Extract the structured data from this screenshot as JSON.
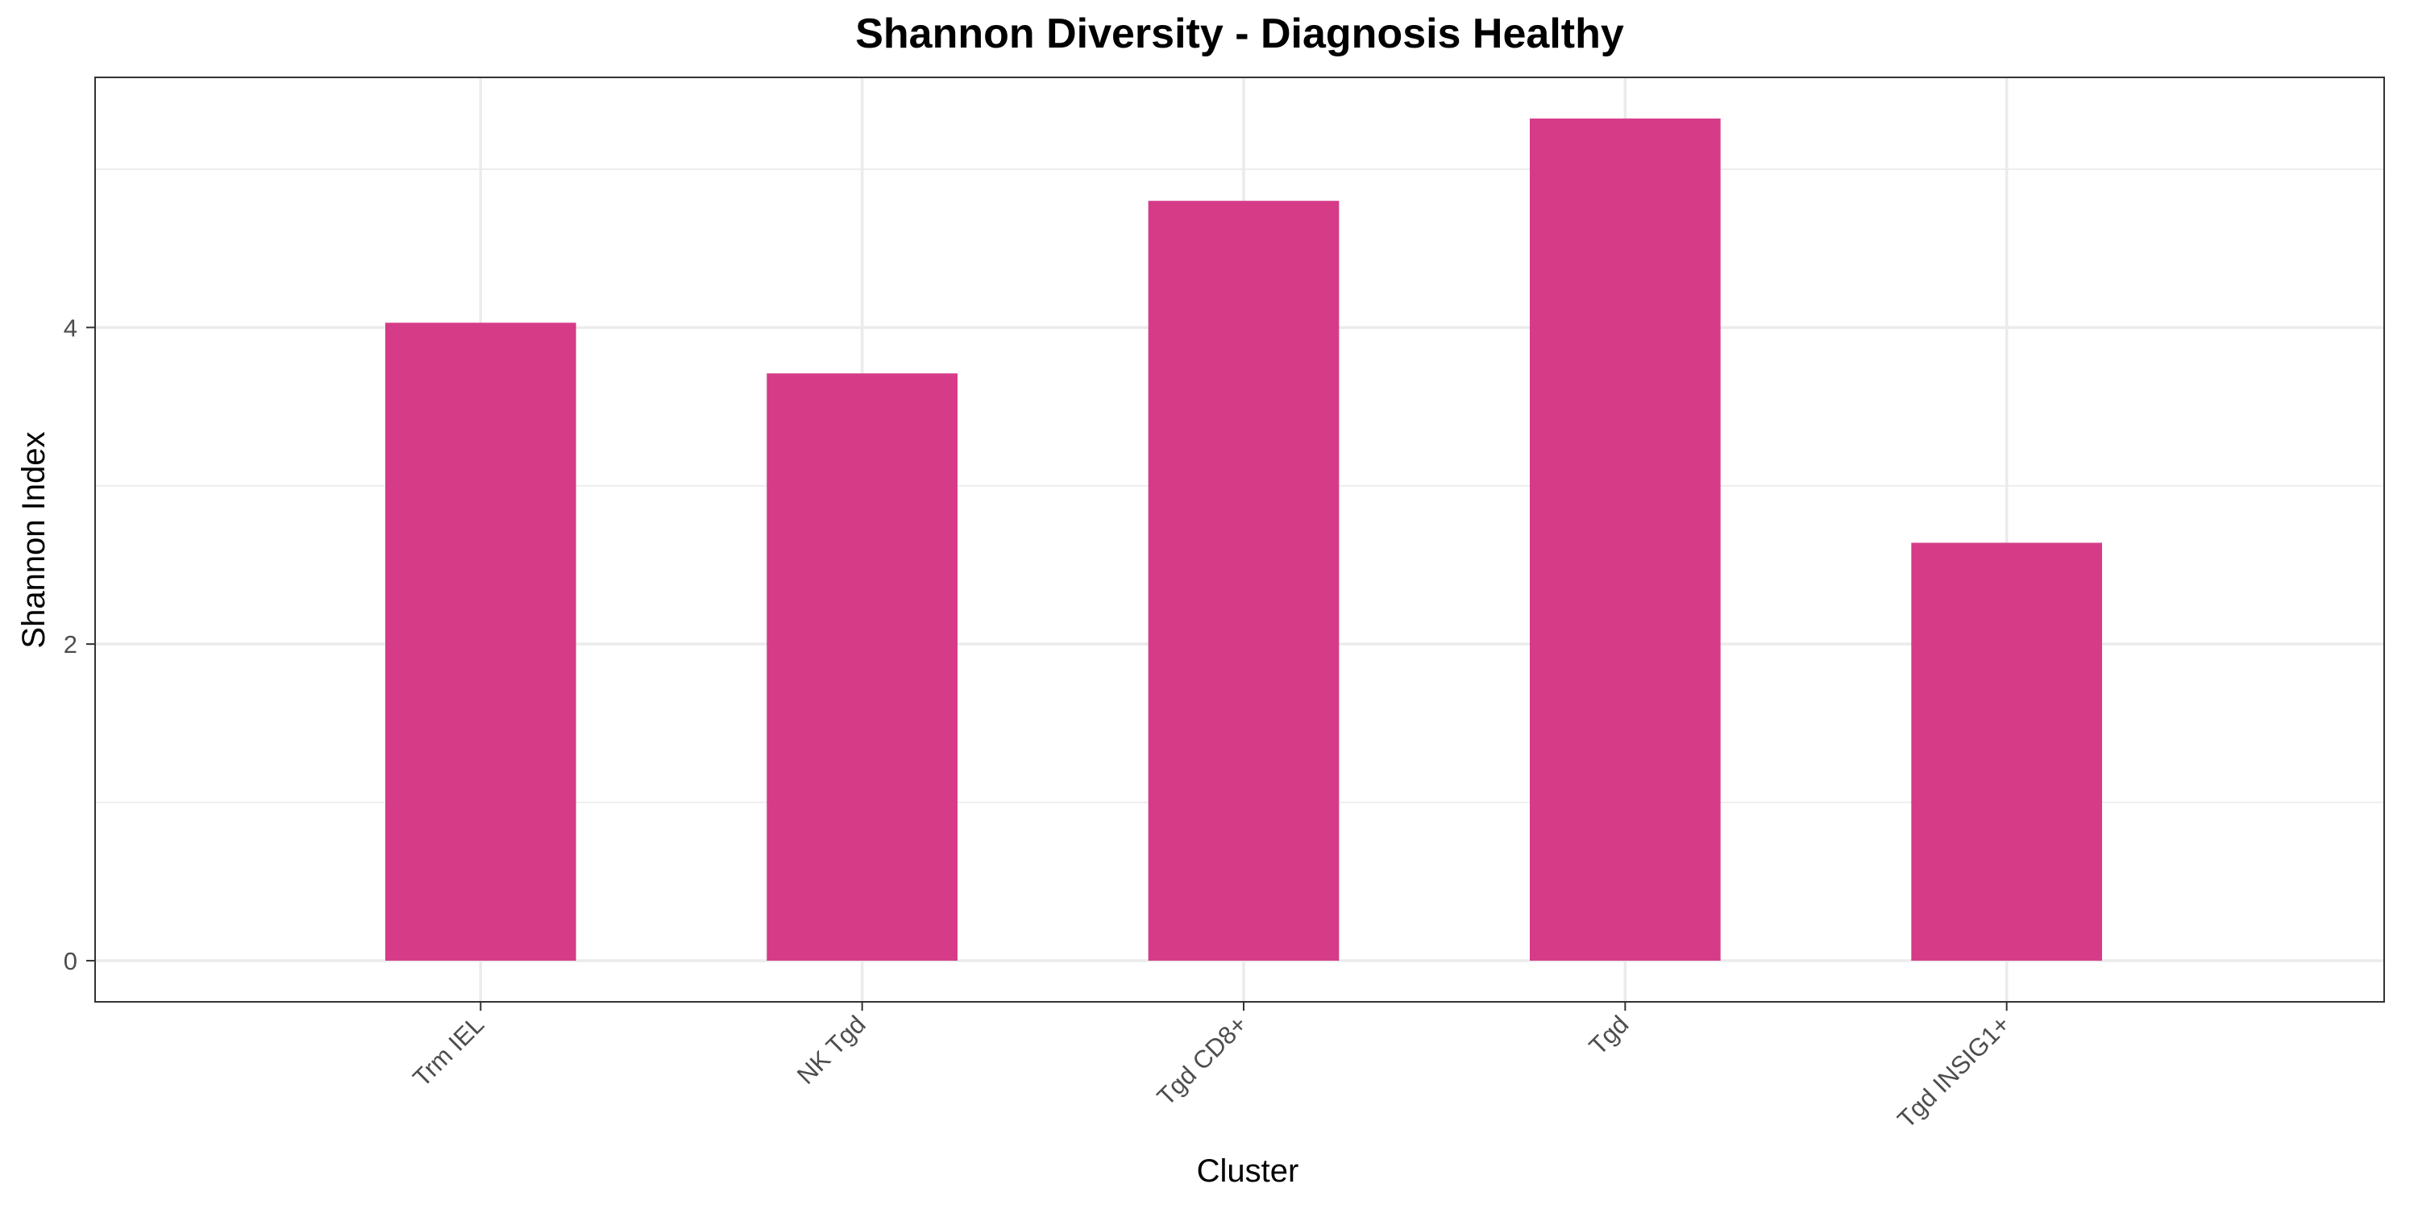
{
  "chart_data": {
    "type": "bar",
    "title": "Shannon Diversity - Diagnosis Healthy",
    "xlabel": "Cluster",
    "ylabel": "Shannon Index",
    "categories": [
      "Trm IEL",
      "NK Tgd",
      "Tgd CD8+",
      "Tgd",
      "Tgd INSIG1+"
    ],
    "values": [
      4.03,
      3.71,
      4.8,
      5.32,
      2.64
    ],
    "ylim": [
      -0.26,
      5.58
    ],
    "yticks": [
      0,
      2,
      4
    ],
    "ytick_labels": [
      "0",
      "2",
      "4"
    ],
    "grid": true,
    "x_tick_label_rotation": "45 degrees",
    "legend": "none",
    "colors": {
      "bar": "#d63b88",
      "grid": "#ebebeb",
      "panel_border": "#333333",
      "tick_label": "#4d4d4d",
      "text": "#000000",
      "background": "#ffffff"
    }
  }
}
